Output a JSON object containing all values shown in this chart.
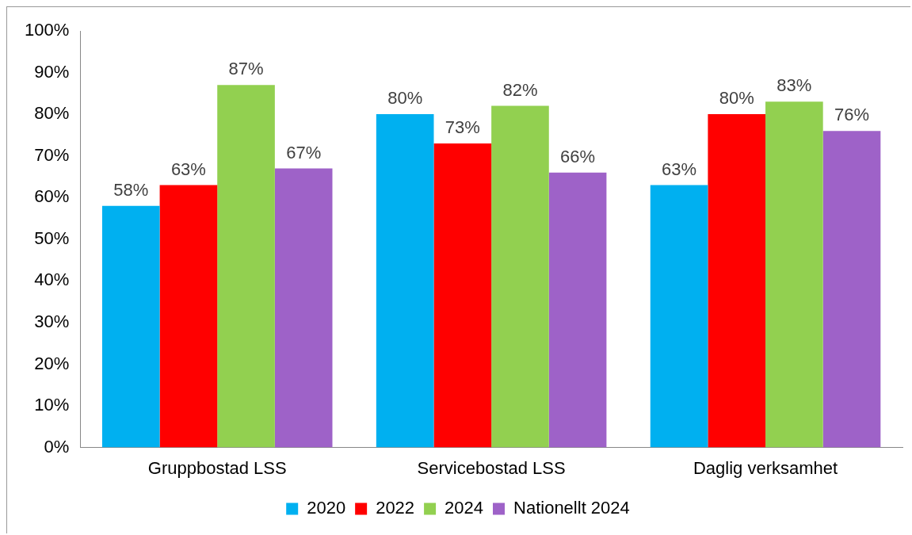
{
  "chart_data": {
    "type": "bar",
    "categories": [
      "Gruppbostad LSS",
      "Servicebostad LSS",
      "Daglig verksamhet"
    ],
    "series": [
      {
        "name": "2020",
        "color": "#00b0f0",
        "values": [
          58,
          80,
          63
        ],
        "value_labels": [
          "58%",
          "80%",
          "63%"
        ]
      },
      {
        "name": "2022",
        "color": "#ff0000",
        "values": [
          63,
          73,
          80
        ],
        "value_labels": [
          "63%",
          "73%",
          "80%"
        ]
      },
      {
        "name": "2024",
        "color": "#92d050",
        "values": [
          87,
          82,
          83
        ],
        "value_labels": [
          "87%",
          "82%",
          "83%"
        ]
      },
      {
        "name": "Nationellt 2024",
        "color": "#9e62c8",
        "values": [
          67,
          66,
          76
        ],
        "value_labels": [
          "67%",
          "66%",
          "76%"
        ]
      }
    ],
    "ylim": [
      0,
      100
    ],
    "yticks": [
      {
        "value": 0,
        "label": "0%"
      },
      {
        "value": 10,
        "label": "10%"
      },
      {
        "value": 20,
        "label": "20%"
      },
      {
        "value": 30,
        "label": "30%"
      },
      {
        "value": 40,
        "label": "40%"
      },
      {
        "value": 50,
        "label": "50%"
      },
      {
        "value": 60,
        "label": "60%"
      },
      {
        "value": 70,
        "label": "70%"
      },
      {
        "value": 80,
        "label": "80%"
      },
      {
        "value": 90,
        "label": "90%"
      },
      {
        "value": 100,
        "label": "100%"
      }
    ],
    "grid": false,
    "legend": "bottom"
  }
}
